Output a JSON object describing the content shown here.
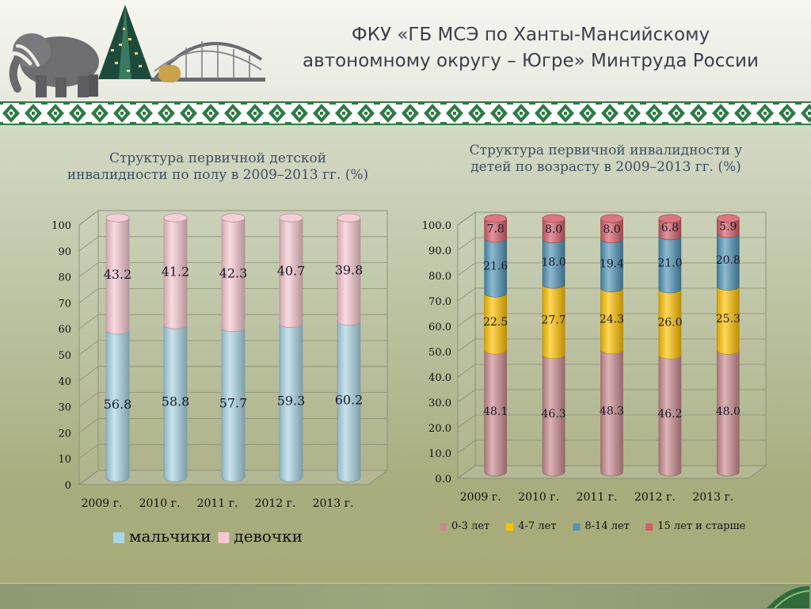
{
  "header": {
    "title_line1": "ФКУ «ГБ МСЭ по Ханты-Мансийскому",
    "title_line2": "автономному округу – Югре» Минтруда России"
  },
  "chart_data": [
    {
      "type": "bar",
      "stacked": true,
      "title": "Структура первичной детской инвалидности по полу в 2009–2013 гг. (%)",
      "title_line1": "Структура первичной детской",
      "title_line2": "инвалидности по полу в 2009–2013 гг. (%)",
      "categories": [
        "2009 г.",
        "2010 г.",
        "2011 г.",
        "2012 г.",
        "2013 г."
      ],
      "series": [
        {
          "name": "мальчики",
          "color": "#a9d4e4",
          "values": [
            56.8,
            58.8,
            57.7,
            59.3,
            60.2
          ]
        },
        {
          "name": "девочки",
          "color": "#f4c7cf",
          "values": [
            43.2,
            41.2,
            42.3,
            40.7,
            39.8
          ]
        }
      ],
      "ylim": [
        0,
        100
      ],
      "yticks": [
        "0",
        "10",
        "20",
        "30",
        "40",
        "50",
        "60",
        "70",
        "80",
        "90",
        "100"
      ],
      "grid": true,
      "legend": "bottom"
    },
    {
      "type": "bar",
      "stacked": true,
      "title": "Структура первичной инвалидности у детей по возрасту в 2009–2013 гг. (%)",
      "title_line1": "Структура первичной инвалидности у",
      "title_line2": "детей по возрасту в 2009–2013 гг. (%)",
      "categories": [
        "2009 г.",
        "2010 г.",
        "2011 г.",
        "2012 г.",
        "2013 г."
      ],
      "series": [
        {
          "name": "0-3 лет",
          "color": "#c98a90",
          "values": [
            48.1,
            46.3,
            48.3,
            46.2,
            48.0
          ]
        },
        {
          "name": "4-7 лет",
          "color": "#fdc000",
          "values": [
            22.5,
            27.7,
            24.3,
            26.0,
            25.3
          ]
        },
        {
          "name": "8-14 лет",
          "color": "#4f93b5",
          "values": [
            21.6,
            18.0,
            19.4,
            21.0,
            20.8
          ]
        },
        {
          "name": "15 лет и старше",
          "color": "#d35e67",
          "values": [
            7.8,
            8.0,
            8.0,
            6.8,
            5.9
          ]
        }
      ],
      "ylim": [
        0,
        100
      ],
      "yticks": [
        "0.0",
        "10.0",
        "20.0",
        "30.0",
        "40.0",
        "50.0",
        "60.0",
        "70.0",
        "80.0",
        "90.0",
        "100.0"
      ],
      "grid": true,
      "legend": "bottom"
    }
  ]
}
